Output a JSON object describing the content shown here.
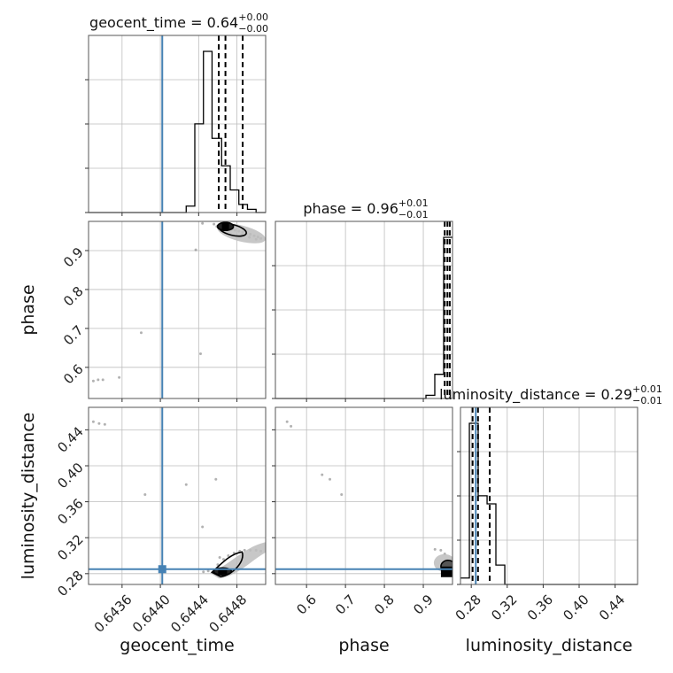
{
  "chart_data": {
    "type": "corner",
    "parameters": [
      "geocent_time",
      "phase",
      "luminosity_distance"
    ],
    "axis_labels": [
      "geocent_time",
      "phase",
      "luminosity_distance"
    ],
    "ranges": {
      "geocent_time": [
        0.64325,
        0.6451
      ],
      "phase": [
        0.52,
        0.975
      ],
      "luminosity_distance": [
        0.268,
        0.465
      ]
    },
    "ticks": {
      "geocent_time": [
        0.6436,
        0.644,
        0.6444,
        0.6448
      ],
      "phase": [
        0.6,
        0.7,
        0.8,
        0.9
      ],
      "luminosity_distance": [
        0.28,
        0.32,
        0.36,
        0.4,
        0.44
      ]
    },
    "tick_labels": {
      "geocent_time": [
        "0.6436",
        "0.6440",
        "0.6444",
        "0.6448"
      ],
      "phase": [
        "0.6",
        "0.7",
        "0.8",
        "0.9"
      ],
      "luminosity_distance": [
        "0.28",
        "0.32",
        "0.36",
        "0.40",
        "0.44"
      ]
    },
    "titles": [
      {
        "param": "geocent_time",
        "name": "geocent_time",
        "value": "0.64",
        "plus": "+0.00",
        "minus": "−0.00"
      },
      {
        "param": "phase",
        "name": "phase",
        "value": "0.96",
        "plus": "+0.01",
        "minus": "−0.01"
      },
      {
        "param": "luminosity_distance",
        "name": "luminosity_distance",
        "value": "0.29",
        "plus": "+0.01",
        "minus": "−0.01"
      }
    ],
    "quantiles": {
      "geocent_time": [
        0.64461,
        0.64468,
        0.64486
      ],
      "phase": [
        0.955,
        0.962,
        0.968
      ],
      "luminosity_distance": [
        0.2815,
        0.2875,
        0.3005
      ]
    },
    "truths": {
      "geocent_time": 0.64402,
      "luminosity_distance": 0.285
    },
    "histograms": {
      "geocent_time": {
        "edges": [
          0.64325,
          0.64334,
          0.64344,
          0.64353,
          0.64362,
          0.64371,
          0.6438,
          0.6439,
          0.64399,
          0.64408,
          0.64417,
          0.64427,
          0.64436,
          0.64445,
          0.64454,
          0.64464,
          0.64473,
          0.64482,
          0.64491,
          0.645,
          0.6451
        ],
        "counts": [
          0,
          0,
          0,
          0,
          0,
          0,
          0,
          0,
          0,
          0,
          0,
          0.04,
          0.55,
          1.0,
          0.46,
          0.29,
          0.14,
          0.05,
          0.02,
          0
        ]
      },
      "phase": {
        "edges": [
          0.52,
          0.5428,
          0.5655,
          0.5883,
          0.611,
          0.6338,
          0.6565,
          0.6793,
          0.702,
          0.7248,
          0.7475,
          0.7703,
          0.793,
          0.8158,
          0.8385,
          0.8613,
          0.884,
          0.9068,
          0.9295,
          0.9523,
          0.975
        ],
        "counts": [
          0,
          0,
          0,
          0,
          0,
          0,
          0,
          0,
          0,
          0,
          0,
          0,
          0,
          0,
          0,
          0,
          0,
          0.02,
          0.15,
          1.0
        ]
      },
      "luminosity_distance": {
        "edges": [
          0.268,
          0.2779,
          0.2877,
          0.2976,
          0.3074,
          0.3173,
          0.3271,
          0.337,
          0.3468,
          0.3567,
          0.3665,
          0.3764,
          0.3862,
          0.3961,
          0.4059,
          0.4158,
          0.4256,
          0.4355,
          0.4453,
          0.4552,
          0.465
        ],
        "counts": [
          0.04,
          1.0,
          0.55,
          0.5,
          0.12,
          0,
          0,
          0,
          0,
          0,
          0,
          0,
          0,
          0,
          0,
          0,
          0,
          0,
          0,
          0
        ]
      }
    },
    "scatter": {
      "geocent_time_phase": {
        "x": [
          0.64456,
          0.64459,
          0.64462,
          0.64465,
          0.64468,
          0.64471,
          0.64475,
          0.64478,
          0.64482,
          0.64486,
          0.6449,
          0.64494,
          0.64498,
          0.64502,
          0.64505,
          0.64485,
          0.64493,
          0.645,
          0.64476,
          0.64461,
          0.64444,
          0.64437,
          0.64442,
          0.6433,
          0.64335,
          0.6434,
          0.64357,
          0.6438
        ],
        "y": [
          0.968,
          0.962,
          0.966,
          0.961,
          0.964,
          0.958,
          0.955,
          0.952,
          0.95,
          0.947,
          0.944,
          0.942,
          0.938,
          0.935,
          0.931,
          0.94,
          0.934,
          0.929,
          0.957,
          0.963,
          0.97,
          0.902,
          0.635,
          0.565,
          0.568,
          0.568,
          0.574,
          0.689
        ]
      },
      "geocent_time_luminosity_distance": {
        "x": [
          0.6433,
          0.64336,
          0.64342,
          0.64384,
          0.64427,
          0.64444,
          0.6445,
          0.64456,
          0.6446,
          0.64466,
          0.64471,
          0.64477,
          0.64483,
          0.64488,
          0.64494,
          0.645,
          0.64505,
          0.64462,
          0.64458,
          0.64445
        ],
        "y": [
          0.449,
          0.447,
          0.446,
          0.368,
          0.379,
          0.332,
          0.283,
          0.284,
          0.29,
          0.296,
          0.3,
          0.303,
          0.305,
          0.306,
          0.306,
          0.306,
          0.305,
          0.298,
          0.385,
          0.282
        ]
      },
      "phase_luminosity_distance": {
        "x": [
          0.55,
          0.56,
          0.64,
          0.66,
          0.69,
          0.93,
          0.945,
          0.955,
          0.962,
          0.968,
          0.972,
          0.958
        ],
        "y": [
          0.449,
          0.444,
          0.39,
          0.385,
          0.368,
          0.307,
          0.306,
          0.302,
          0.295,
          0.289,
          0.284,
          0.281
        ]
      }
    },
    "density_centers": {
      "geocent_time_phase": {
        "x": 0.64468,
        "y": 0.962
      },
      "geocent_time_luminosity_distance": {
        "x": 0.64465,
        "y": 0.2825
      },
      "phase_luminosity_distance": {
        "x": 0.968,
        "y": 0.284
      }
    },
    "grid": true,
    "colors": {
      "truth": "#4682b4",
      "hist": "#000000",
      "scatter": "#555555",
      "grid": "#bdbdbd"
    }
  }
}
